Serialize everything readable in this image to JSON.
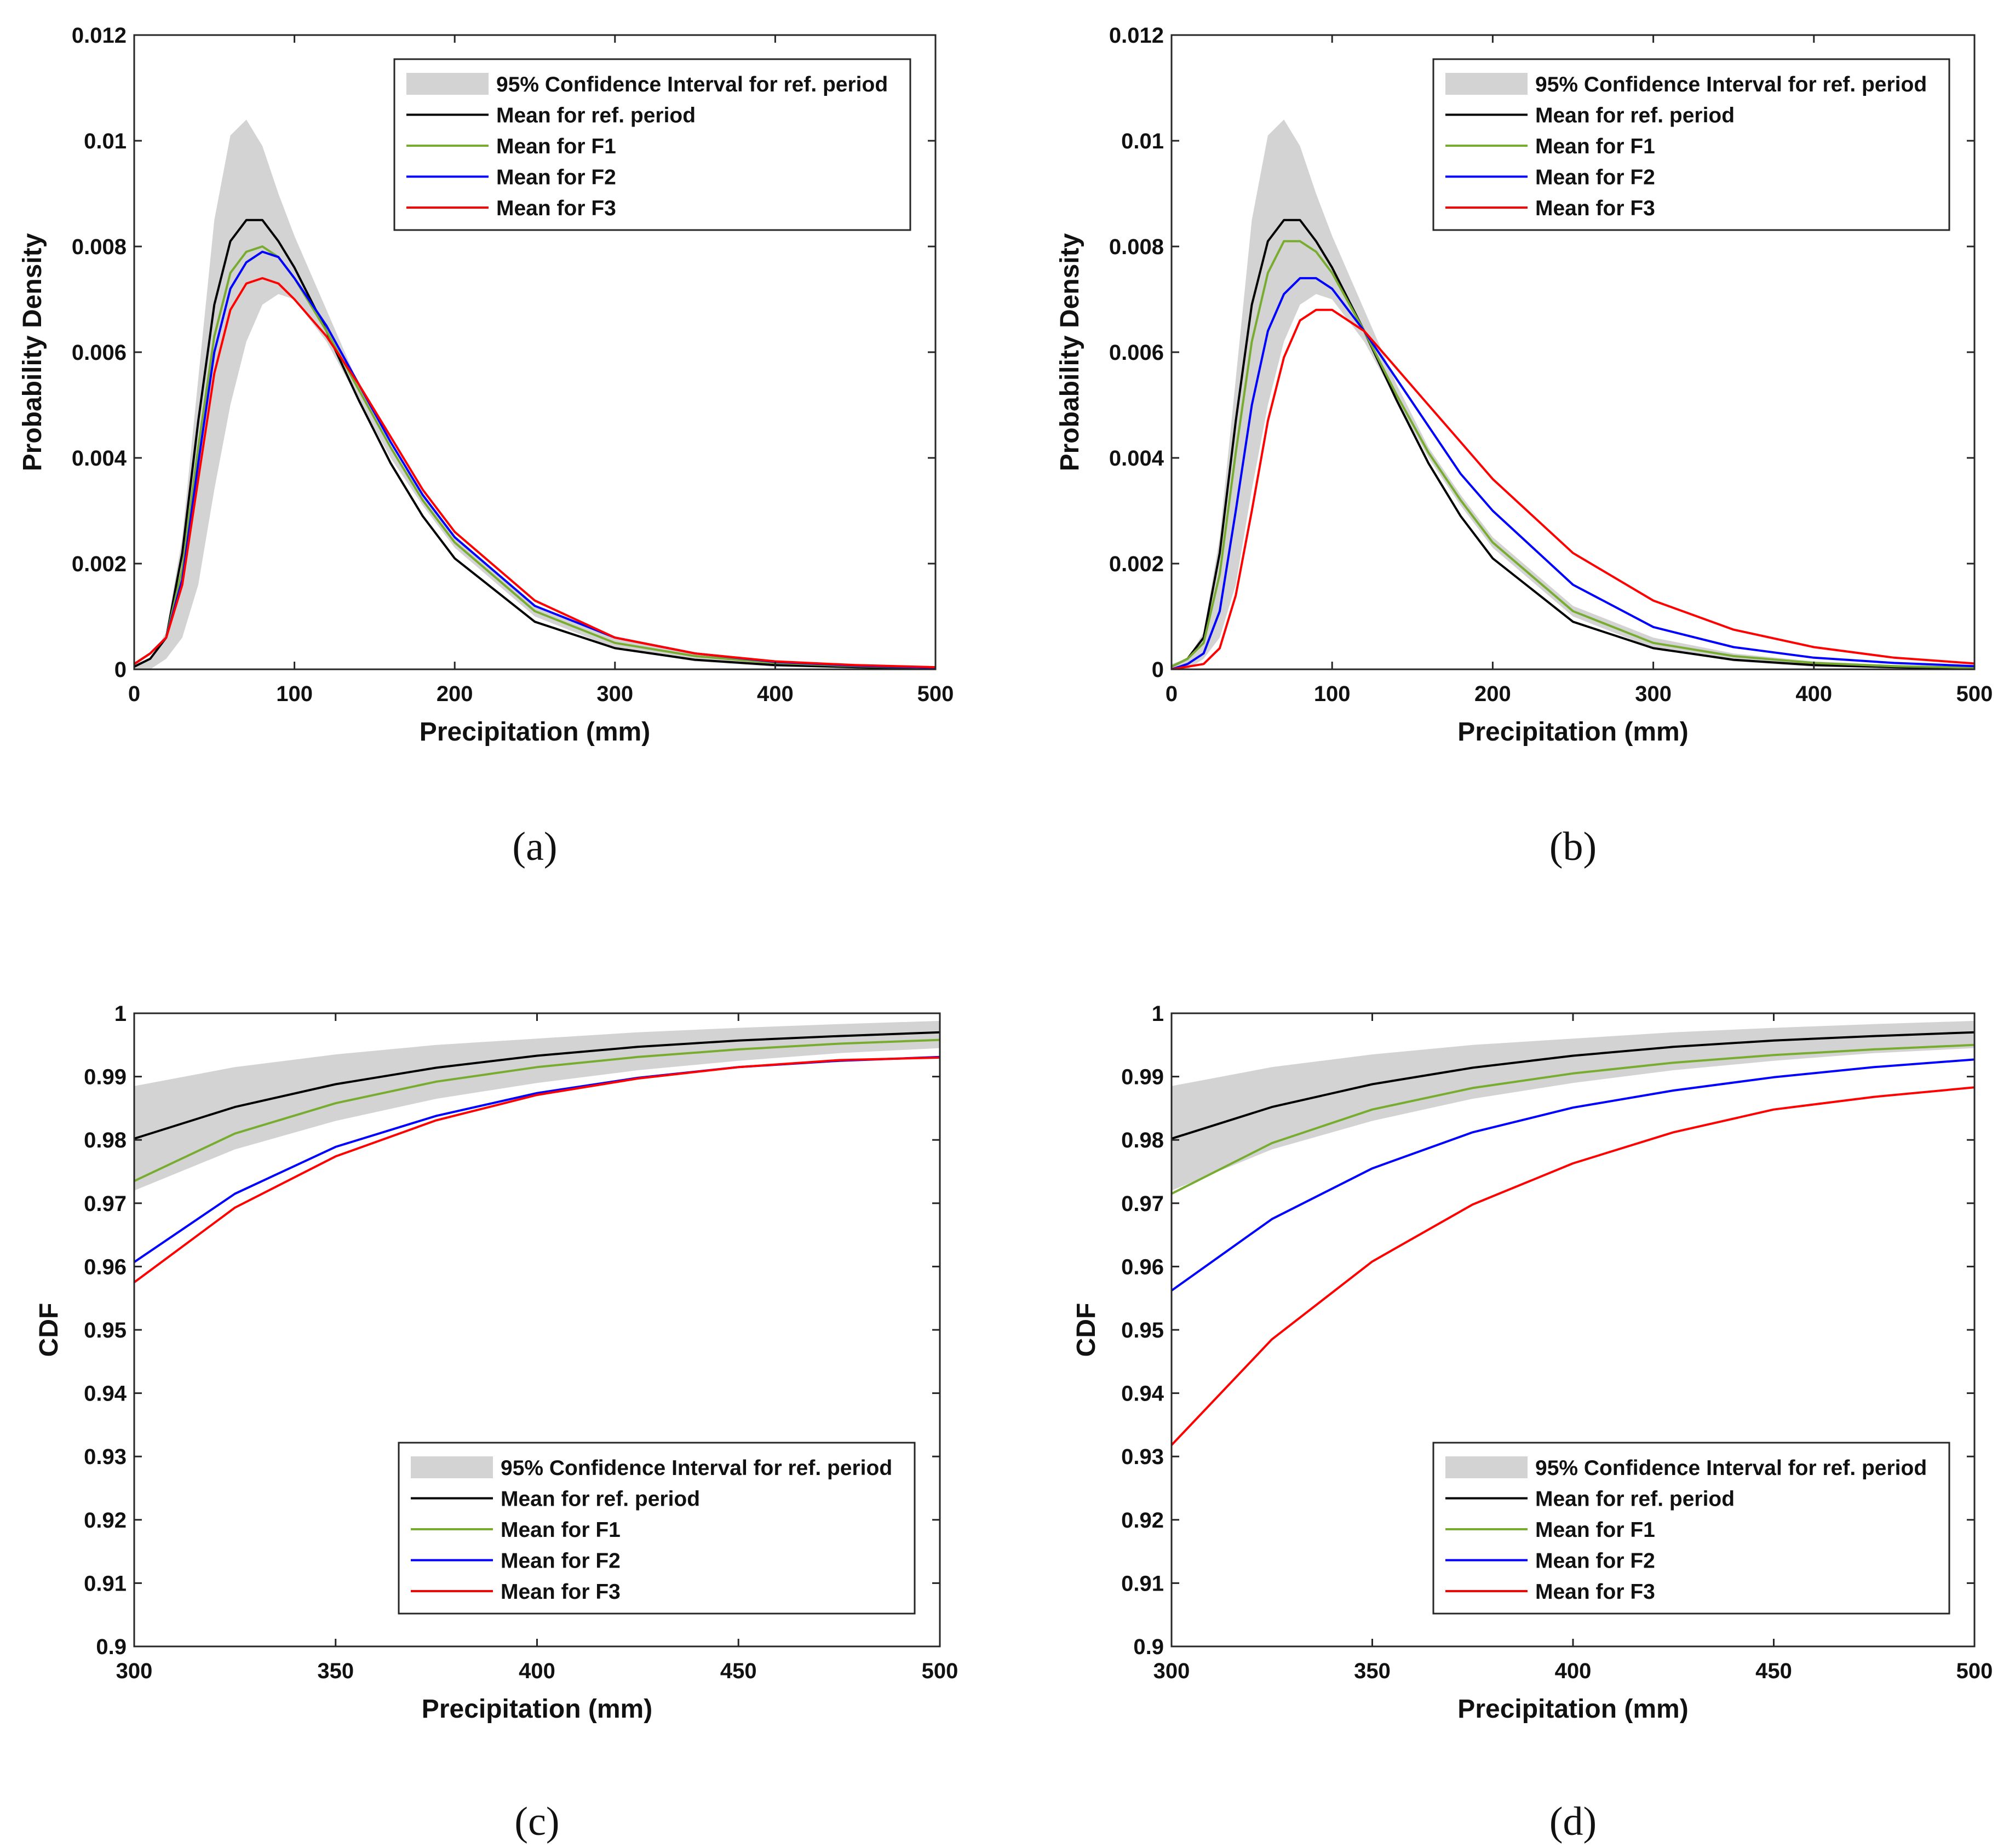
{
  "legend": {
    "ci": "95% Confidence Interval for ref. period",
    "ref": "Mean for ref. period",
    "f1": "Mean for F1",
    "f2": "Mean for F2",
    "f3": "Mean for F3"
  },
  "colors": {
    "ci": "#d3d3d3",
    "ref": "#000000",
    "f1": "#77ac30",
    "f2": "#0000ff",
    "f3": "#ff0000"
  },
  "chart_data": [
    {
      "id": "a",
      "panel_label": "(a)",
      "type": "line",
      "xlabel": "Precipitation (mm)",
      "ylabel": "Probability Density",
      "xlim": [
        0,
        500
      ],
      "ylim": [
        0,
        0.012
      ],
      "xticks": [
        "0",
        "100",
        "200",
        "300",
        "400",
        "500"
      ],
      "yticks": [
        "0",
        "0.002",
        "0.004",
        "0.006",
        "0.008",
        "0.01",
        "0.012"
      ],
      "legend_position": "top-right",
      "x": [
        0,
        10,
        20,
        30,
        40,
        50,
        60,
        70,
        80,
        90,
        100,
        120,
        140,
        160,
        180,
        200,
        250,
        300,
        350,
        400,
        450,
        500
      ],
      "ci_upper": [
        0.0001,
        0.0002,
        0.0007,
        0.0025,
        0.0055,
        0.0085,
        0.0101,
        0.0104,
        0.0099,
        0.009,
        0.0082,
        0.0068,
        0.0054,
        0.0042,
        0.0033,
        0.0025,
        0.0012,
        0.0006,
        0.0003,
        0.00015,
        8e-05,
        4e-05
      ],
      "ci_lower": [
        0.0,
        0.0,
        0.0002,
        0.0006,
        0.0016,
        0.0034,
        0.005,
        0.0062,
        0.0069,
        0.0071,
        0.007,
        0.0062,
        0.0051,
        0.004,
        0.0031,
        0.0023,
        0.001,
        0.0004,
        0.00015,
        5e-05,
        2e-05,
        0.0
      ],
      "series": [
        {
          "key": "ref",
          "name": "Mean for ref. period",
          "values": [
            5e-05,
            0.0002,
            0.0006,
            0.0022,
            0.0047,
            0.0069,
            0.0081,
            0.0085,
            0.0085,
            0.0081,
            0.0076,
            0.0064,
            0.0051,
            0.0039,
            0.0029,
            0.0021,
            0.0009,
            0.0004,
            0.00018,
            8e-05,
            4e-05,
            2e-05
          ]
        },
        {
          "key": "f1",
          "name": "Mean for F1",
          "values": [
            0.0001,
            0.0003,
            0.0006,
            0.0019,
            0.0042,
            0.0063,
            0.0075,
            0.0079,
            0.008,
            0.0078,
            0.0074,
            0.0064,
            0.0053,
            0.0042,
            0.0032,
            0.0024,
            0.0011,
            0.0005,
            0.00025,
            0.00012,
            6e-05,
            3e-05
          ]
        },
        {
          "key": "f2",
          "name": "Mean for F2",
          "values": [
            0.0001,
            0.0003,
            0.0006,
            0.0017,
            0.0039,
            0.006,
            0.0072,
            0.0077,
            0.0079,
            0.0078,
            0.0074,
            0.0065,
            0.0054,
            0.0043,
            0.0033,
            0.0025,
            0.0012,
            0.0006,
            0.0003,
            0.00014,
            7e-05,
            3e-05
          ]
        },
        {
          "key": "f3",
          "name": "Mean for F3",
          "values": [
            0.0001,
            0.0003,
            0.0006,
            0.0016,
            0.0036,
            0.0056,
            0.0068,
            0.0073,
            0.0074,
            0.0073,
            0.007,
            0.0063,
            0.0054,
            0.0044,
            0.0034,
            0.0026,
            0.0013,
            0.0006,
            0.0003,
            0.00015,
            8e-05,
            4e-05
          ]
        }
      ]
    },
    {
      "id": "b",
      "panel_label": "(b)",
      "type": "line",
      "xlabel": "Precipitation (mm)",
      "ylabel": "Probability Density",
      "xlim": [
        0,
        500
      ],
      "ylim": [
        0,
        0.012
      ],
      "xticks": [
        "0",
        "100",
        "200",
        "300",
        "400",
        "500"
      ],
      "yticks": [
        "0",
        "0.002",
        "0.004",
        "0.006",
        "0.008",
        "0.01",
        "0.012"
      ],
      "legend_position": "top-right",
      "x": [
        0,
        10,
        20,
        30,
        40,
        50,
        60,
        70,
        80,
        90,
        100,
        120,
        140,
        160,
        180,
        200,
        250,
        300,
        350,
        400,
        450,
        500
      ],
      "ci_upper": [
        0.0001,
        0.0002,
        0.0007,
        0.0025,
        0.0055,
        0.0085,
        0.0101,
        0.0104,
        0.0099,
        0.009,
        0.0082,
        0.0068,
        0.0054,
        0.0042,
        0.0033,
        0.0025,
        0.0012,
        0.0006,
        0.0003,
        0.00015,
        8e-05,
        4e-05
      ],
      "ci_lower": [
        0.0,
        0.0,
        0.0002,
        0.0006,
        0.0016,
        0.0034,
        0.005,
        0.0062,
        0.0069,
        0.0071,
        0.007,
        0.0062,
        0.0051,
        0.004,
        0.0031,
        0.0023,
        0.001,
        0.0004,
        0.00015,
        5e-05,
        2e-05,
        0.0
      ],
      "series": [
        {
          "key": "ref",
          "name": "Mean for ref. period",
          "values": [
            5e-05,
            0.0002,
            0.0006,
            0.0022,
            0.0047,
            0.0069,
            0.0081,
            0.0085,
            0.0085,
            0.0081,
            0.0076,
            0.0064,
            0.0051,
            0.0039,
            0.0029,
            0.0021,
            0.0009,
            0.0004,
            0.00018,
            8e-05,
            4e-05,
            2e-05
          ]
        },
        {
          "key": "f1",
          "name": "Mean for F1",
          "values": [
            5e-05,
            0.0002,
            0.0005,
            0.0018,
            0.0041,
            0.0062,
            0.0075,
            0.0081,
            0.0081,
            0.0079,
            0.0075,
            0.0064,
            0.0052,
            0.0041,
            0.0032,
            0.0024,
            0.0011,
            0.0005,
            0.00025,
            0.00012,
            6e-05,
            3e-05
          ]
        },
        {
          "key": "f2",
          "name": "Mean for F2",
          "values": [
            0.0,
            0.0001,
            0.0003,
            0.0011,
            0.003,
            0.005,
            0.0064,
            0.0071,
            0.0074,
            0.0074,
            0.0072,
            0.0064,
            0.0055,
            0.0046,
            0.0037,
            0.003,
            0.0016,
            0.0008,
            0.00042,
            0.00022,
            0.00012,
            6e-05
          ]
        },
        {
          "key": "f3",
          "name": "Mean for F3",
          "values": [
            0.0,
            5e-05,
            0.0001,
            0.0004,
            0.0014,
            0.003,
            0.0047,
            0.0059,
            0.0066,
            0.0068,
            0.0068,
            0.0064,
            0.0057,
            0.005,
            0.0043,
            0.0036,
            0.0022,
            0.0013,
            0.00075,
            0.00042,
            0.00022,
            0.00011
          ]
        }
      ]
    },
    {
      "id": "c",
      "panel_label": "(c)",
      "type": "line",
      "xlabel": "Precipitation (mm)",
      "ylabel": "CDF",
      "xlim": [
        300,
        500
      ],
      "ylim": [
        0.9,
        1.0
      ],
      "xticks": [
        "300",
        "350",
        "400",
        "450",
        "500"
      ],
      "yticks": [
        "0.9",
        "0.91",
        "0.92",
        "0.93",
        "0.94",
        "0.95",
        "0.96",
        "0.97",
        "0.98",
        "0.99",
        "1"
      ],
      "legend_position": "bottom-right",
      "x": [
        300,
        325,
        350,
        375,
        400,
        425,
        450,
        475,
        500
      ],
      "ci_upper": [
        0.9885,
        0.9915,
        0.9935,
        0.995,
        0.996,
        0.997,
        0.9977,
        0.9983,
        0.9988
      ],
      "ci_lower": [
        0.972,
        0.9785,
        0.983,
        0.9865,
        0.989,
        0.991,
        0.9925,
        0.9937,
        0.9945
      ],
      "series": [
        {
          "key": "ref",
          "name": "Mean for ref. period",
          "values": [
            0.9802,
            0.9852,
            0.9888,
            0.9914,
            0.9933,
            0.9947,
            0.9957,
            0.9964,
            0.997
          ]
        },
        {
          "key": "f1",
          "name": "Mean for F1",
          "values": [
            0.9735,
            0.981,
            0.9858,
            0.9892,
            0.9915,
            0.9931,
            0.9943,
            0.9952,
            0.9958
          ]
        },
        {
          "key": "f2",
          "name": "Mean for F2",
          "values": [
            0.9607,
            0.9715,
            0.9789,
            0.9838,
            0.9874,
            0.9898,
            0.9915,
            0.9925,
            0.9931
          ]
        },
        {
          "key": "f3",
          "name": "Mean for F3",
          "values": [
            0.9575,
            0.9693,
            0.9774,
            0.9831,
            0.9871,
            0.9897,
            0.9915,
            0.9926,
            0.993
          ]
        }
      ]
    },
    {
      "id": "d",
      "panel_label": "(d)",
      "type": "line",
      "xlabel": "Precipitation (mm)",
      "ylabel": "CDF",
      "xlim": [
        300,
        500
      ],
      "ylim": [
        0.9,
        1.0
      ],
      "xticks": [
        "300",
        "350",
        "400",
        "450",
        "500"
      ],
      "yticks": [
        "0.9",
        "0.91",
        "0.92",
        "0.93",
        "0.94",
        "0.95",
        "0.96",
        "0.97",
        "0.98",
        "0.99",
        "1"
      ],
      "legend_position": "bottom-right",
      "x": [
        300,
        325,
        350,
        375,
        400,
        425,
        450,
        475,
        500
      ],
      "ci_upper": [
        0.9885,
        0.9915,
        0.9935,
        0.995,
        0.996,
        0.997,
        0.9977,
        0.9983,
        0.9988
      ],
      "ci_lower": [
        0.972,
        0.9785,
        0.983,
        0.9865,
        0.989,
        0.991,
        0.9925,
        0.9937,
        0.9945
      ],
      "series": [
        {
          "key": "ref",
          "name": "Mean for ref. period",
          "values": [
            0.9802,
            0.9852,
            0.9888,
            0.9914,
            0.9933,
            0.9947,
            0.9957,
            0.9964,
            0.997
          ]
        },
        {
          "key": "f1",
          "name": "Mean for F1",
          "values": [
            0.9715,
            0.9795,
            0.9848,
            0.9882,
            0.9905,
            0.9922,
            0.9934,
            0.9943,
            0.995
          ]
        },
        {
          "key": "f2",
          "name": "Mean for F2",
          "values": [
            0.9562,
            0.9675,
            0.9755,
            0.9812,
            0.9851,
            0.9878,
            0.9899,
            0.9915,
            0.9927
          ]
        },
        {
          "key": "f3",
          "name": "Mean for F3",
          "values": [
            0.9318,
            0.9485,
            0.9608,
            0.9698,
            0.9763,
            0.9812,
            0.9848,
            0.9868,
            0.9883
          ]
        }
      ]
    }
  ]
}
